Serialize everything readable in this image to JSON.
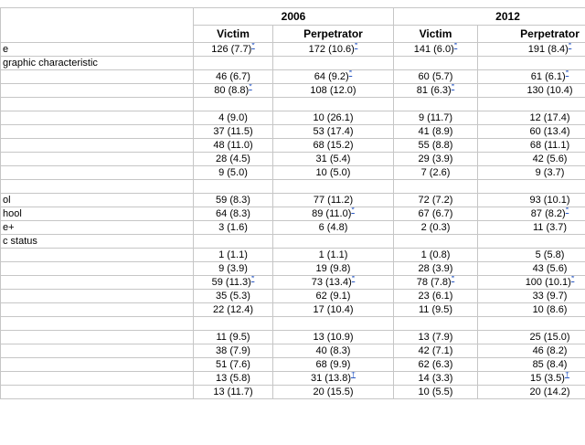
{
  "page": {
    "background": "#ffffff"
  },
  "table": {
    "border_color": "#c6c6c6",
    "marker_color": "#2b59c3",
    "corner_label": "",
    "year_groups": [
      {
        "label": "2006"
      },
      {
        "label": "2012"
      }
    ],
    "column_headers": [
      "Victim",
      "Perpetrator",
      "Victim",
      "Perpetrator"
    ],
    "rows": [
      {
        "label": "e",
        "cells": [
          [
            "126 (7.7)",
            "*"
          ],
          [
            "172 (10.6)",
            "*"
          ],
          [
            "141 (6.0)",
            "*"
          ],
          [
            "191 (8.4)",
            "*"
          ]
        ]
      },
      {
        "label": "graphic characteristic"
      },
      {
        "label": "",
        "cells": [
          [
            "46 (6.7)",
            ""
          ],
          [
            "64 (9.2)",
            "*"
          ],
          [
            "60 (5.7)",
            ""
          ],
          [
            "61 (6.1)",
            "*"
          ]
        ]
      },
      {
        "label": "",
        "cells": [
          [
            "80 (8.8)",
            "*"
          ],
          [
            "108 (12.0)",
            ""
          ],
          [
            "81 (6.3)",
            "*"
          ],
          [
            "130 (10.4)",
            ""
          ]
        ]
      },
      {
        "label": ""
      },
      {
        "label": "",
        "cells": [
          [
            "4 (9.0)",
            ""
          ],
          [
            "10 (26.1)",
            ""
          ],
          [
            "9 (11.7)",
            ""
          ],
          [
            "12 (17.4)",
            ""
          ]
        ]
      },
      {
        "label": "",
        "cells": [
          [
            "37 (11.5)",
            ""
          ],
          [
            "53 (17.4)",
            ""
          ],
          [
            "41 (8.9)",
            ""
          ],
          [
            "60 (13.4)",
            ""
          ]
        ]
      },
      {
        "label": "",
        "cells": [
          [
            "48 (11.0)",
            ""
          ],
          [
            "68 (15.2)",
            ""
          ],
          [
            "55 (8.8)",
            ""
          ],
          [
            "68 (11.1)",
            ""
          ]
        ]
      },
      {
        "label": "",
        "cells": [
          [
            "28 (4.5)",
            ""
          ],
          [
            "31 (5.4)",
            ""
          ],
          [
            "29 (3.9)",
            ""
          ],
          [
            "42 (5.6)",
            ""
          ]
        ]
      },
      {
        "label": "",
        "cells": [
          [
            "9 (5.0)",
            ""
          ],
          [
            "10 (5.0)",
            ""
          ],
          [
            "7 (2.6)",
            ""
          ],
          [
            "9 (3.7)",
            ""
          ]
        ]
      },
      {
        "label": ""
      },
      {
        "label": "ol",
        "cells": [
          [
            "59 (8.3)",
            ""
          ],
          [
            "77 (11.2)",
            ""
          ],
          [
            "72 (7.2)",
            ""
          ],
          [
            "93 (10.1)",
            ""
          ]
        ]
      },
      {
        "label": "hool",
        "cells": [
          [
            "64 (8.3)",
            ""
          ],
          [
            "89 (11.0)",
            "*"
          ],
          [
            "67 (6.7)",
            ""
          ],
          [
            "87 (8.2)",
            "*"
          ]
        ]
      },
      {
        "label": "e+",
        "cells": [
          [
            "3 (1.6)",
            ""
          ],
          [
            "6 (4.8)",
            ""
          ],
          [
            "2 (0.3)",
            ""
          ],
          [
            "11 (3.7)",
            ""
          ]
        ]
      },
      {
        "label": "c status"
      },
      {
        "label": "",
        "cells": [
          [
            "1 (1.1)",
            ""
          ],
          [
            "1 (1.1)",
            ""
          ],
          [
            "1 (0.8)",
            ""
          ],
          [
            "5 (5.8)",
            ""
          ]
        ]
      },
      {
        "label": "",
        "cells": [
          [
            "9 (3.9)",
            ""
          ],
          [
            "19 (9.8)",
            ""
          ],
          [
            "28 (3.9)",
            ""
          ],
          [
            "43 (5.6)",
            ""
          ]
        ]
      },
      {
        "label": "",
        "cells": [
          [
            "59 (11.3)",
            "*"
          ],
          [
            "73 (13.4)",
            "*"
          ],
          [
            "78 (7.8)",
            "*"
          ],
          [
            "100 (10.1)",
            "*"
          ]
        ]
      },
      {
        "label": "",
        "cells": [
          [
            "35 (5.3)",
            ""
          ],
          [
            "62 (9.1)",
            ""
          ],
          [
            "23 (6.1)",
            ""
          ],
          [
            "33 (9.7)",
            ""
          ]
        ]
      },
      {
        "label": "",
        "cells": [
          [
            "22 (12.4)",
            ""
          ],
          [
            "17 (10.4)",
            ""
          ],
          [
            "11 (9.5)",
            ""
          ],
          [
            "10 (8.6)",
            ""
          ]
        ]
      },
      {
        "label": ""
      },
      {
        "label": "",
        "cells": [
          [
            "11 (9.5)",
            ""
          ],
          [
            "13 (10.9)",
            ""
          ],
          [
            "13 (7.9)",
            ""
          ],
          [
            "25 (15.0)",
            ""
          ]
        ]
      },
      {
        "label": "",
        "cells": [
          [
            "38 (7.9)",
            ""
          ],
          [
            "40 (8.3)",
            ""
          ],
          [
            "42 (7.1)",
            ""
          ],
          [
            "46 (8.2)",
            ""
          ]
        ]
      },
      {
        "label": "",
        "cells": [
          [
            "51 (7.6)",
            ""
          ],
          [
            "68 (9.9)",
            ""
          ],
          [
            "62 (6.3)",
            ""
          ],
          [
            "85 (8.4)",
            ""
          ]
        ]
      },
      {
        "label": "",
        "cells": [
          [
            "13 (5.8)",
            ""
          ],
          [
            "31 (13.8)",
            "†"
          ],
          [
            "14 (3.3)",
            ""
          ],
          [
            "15 (3.5)",
            "†"
          ]
        ]
      },
      {
        "label": "",
        "cells": [
          [
            "13 (11.7)",
            ""
          ],
          [
            "20 (15.5)",
            ""
          ],
          [
            "10 (5.5)",
            ""
          ],
          [
            "20 (14.2)",
            ""
          ]
        ]
      }
    ]
  }
}
